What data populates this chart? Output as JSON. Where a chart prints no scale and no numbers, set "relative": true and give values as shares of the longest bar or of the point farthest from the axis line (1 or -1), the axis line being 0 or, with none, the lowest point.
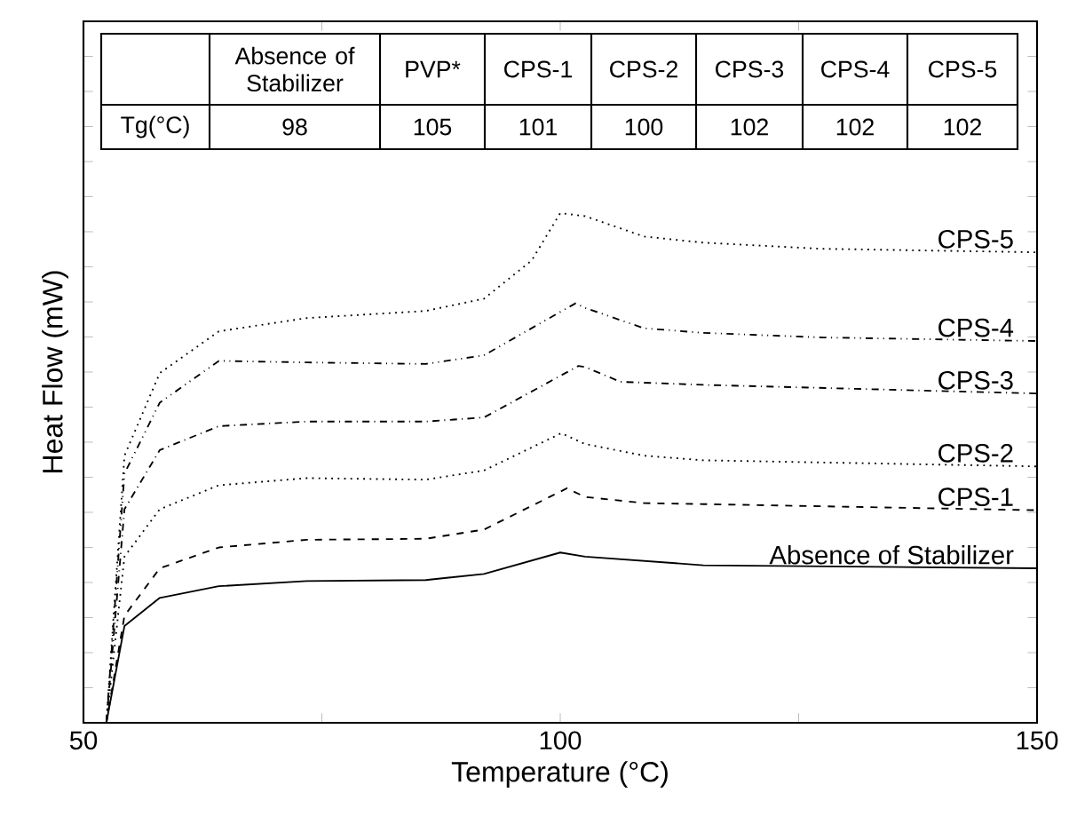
{
  "chart_data": {
    "type": "line",
    "relative": true,
    "xlabel": "Temperature (°C)",
    "ylabel": "Heat Flow (mW)",
    "xlim": [
      50,
      150
    ],
    "xticks": [
      50,
      {
        "value": 75,
        "label": null
      },
      100,
      {
        "value": 125,
        "label": null
      },
      150
    ],
    "annotations": [
      "Absence of Stabilizer",
      "PVP*",
      "CPS-1",
      "CPS-2",
      "CPS-3",
      "CPS-4",
      "CPS-5",
      "Tg(°C)",
      "98",
      "105",
      "101",
      "100",
      "102",
      "102",
      "102"
    ],
    "series": [
      {
        "name": "Absence of Stabilizer",
        "color": "#000000",
        "line_style": "solid",
        "x": [
          52.4,
          54.3,
          58.0,
          64.2,
          73.4,
          85.9,
          92.0,
          100.0,
          102.6,
          115.0,
          150
        ],
        "values": [
          0,
          0.19,
          0.245,
          0.268,
          0.278,
          0.28,
          0.292,
          0.334,
          0.326,
          0.309,
          0.303
        ]
      },
      {
        "name": "CPS-1",
        "color": "#000000",
        "line_style": "dashed",
        "x": [
          52.4,
          54.3,
          58.0,
          64.2,
          73.4,
          85.9,
          92.0,
          100.7,
          102.6,
          108.8,
          115.0,
          150
        ],
        "values": [
          0,
          0.21,
          0.303,
          0.344,
          0.359,
          0.361,
          0.379,
          0.46,
          0.443,
          0.431,
          0.429,
          0.417
        ]
      },
      {
        "name": "CPS-2",
        "color": "#000000",
        "line_style": "dotted",
        "x": [
          52.4,
          54.3,
          58.0,
          64.2,
          73.4,
          85.9,
          92.0,
          100.1,
          102.6,
          108.8,
          115.0,
          150
        ],
        "values": [
          0,
          0.326,
          0.419,
          0.466,
          0.48,
          0.477,
          0.495,
          0.568,
          0.547,
          0.524,
          0.515,
          0.503
        ]
      },
      {
        "name": "CPS-3",
        "color": "#000000",
        "line_style": "dashdot",
        "x": [
          52.4,
          54.3,
          58.0,
          64.2,
          73.4,
          85.9,
          92.0,
          101.9,
          102.6,
          106.3,
          115.0,
          150
        ],
        "values": [
          0,
          0.419,
          0.535,
          0.582,
          0.591,
          0.591,
          0.599,
          0.7,
          0.698,
          0.669,
          0.663,
          0.646
        ]
      },
      {
        "name": "CPS-4",
        "color": "#000000",
        "line_style": "dashdotdot",
        "x": [
          52.4,
          54.3,
          58.0,
          64.2,
          73.4,
          85.9,
          92.0,
          101.6,
          102.6,
          108.8,
          115.0,
          127.4,
          150
        ],
        "values": [
          0,
          0.489,
          0.628,
          0.71,
          0.707,
          0.704,
          0.721,
          0.823,
          0.814,
          0.774,
          0.765,
          0.756,
          0.749
        ]
      },
      {
        "name": "CPS-5",
        "color": "#000000",
        "line_style": "dotted",
        "x": [
          52.4,
          54.3,
          58.0,
          64.2,
          73.4,
          85.9,
          92.0,
          97.0,
          100.0,
          102.6,
          108.8,
          115.0,
          127.4,
          150
        ],
        "values": [
          0,
          0.524,
          0.686,
          0.768,
          0.794,
          0.808,
          0.832,
          0.907,
          1.0,
          0.994,
          0.954,
          0.942,
          0.93,
          0.923
        ]
      }
    ]
  }
}
